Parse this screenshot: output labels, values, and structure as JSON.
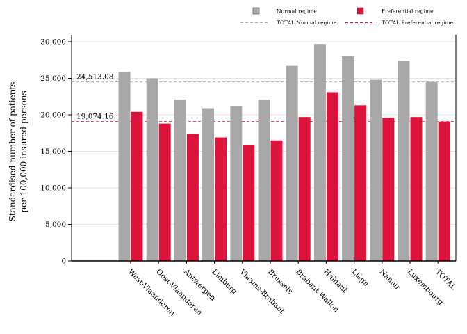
{
  "chart_data": {
    "type": "bar",
    "ylabel_lines": [
      "Standardised number of patients",
      "per 100,000 insured persons"
    ],
    "xlabel": "",
    "ylim": [
      0,
      30000
    ],
    "yticks": [
      0,
      5000,
      10000,
      15000,
      20000,
      25000,
      30000
    ],
    "ytick_labels": [
      "0",
      "5,000",
      "10,000",
      "15,000",
      "20,000",
      "25,000",
      "30,000"
    ],
    "grid": true,
    "legend_position": "top-right",
    "categories": [
      "West-Vlaanderen",
      "Oost-Vlaanderen",
      "Antwerpen",
      "Limburg",
      "Vlaams-Brabant",
      "Brussels",
      "Brabant Wallon",
      "Hainaut",
      "Liège",
      "Namur",
      "Luxembourg",
      "TOTAL"
    ],
    "series": [
      {
        "name": "Normal regime",
        "color": "#a8a8a8",
        "values": [
          25900,
          25000,
          22100,
          20900,
          21200,
          22100,
          26700,
          29700,
          28000,
          24800,
          27400,
          24513
        ]
      },
      {
        "name": "Preferential regime",
        "color": "#dc143c",
        "values": [
          20400,
          18800,
          17400,
          16900,
          15900,
          16500,
          19700,
          23100,
          21300,
          19600,
          19700,
          19074
        ]
      }
    ],
    "reference_lines": [
      {
        "name": "TOTAL Normal regime",
        "value": 24513.08,
        "label": "24,513.08",
        "color": "#b0b0b0",
        "style": "dashed"
      },
      {
        "name": "TOTAL Preferential regime",
        "value": 19074.16,
        "label": "19,074.16",
        "color": "#dc143c",
        "style": "dashed"
      }
    ]
  }
}
